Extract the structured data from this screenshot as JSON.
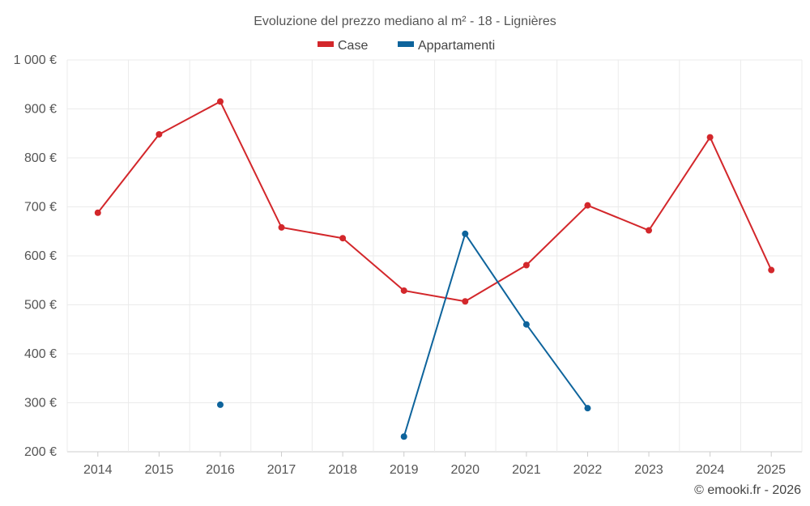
{
  "chart_data": {
    "type": "line",
    "title": "Evoluzione del prezzo mediano al m² - 18 - Lignières",
    "categories": [
      "2014",
      "2015",
      "2016",
      "2017",
      "2018",
      "2019",
      "2020",
      "2021",
      "2022",
      "2023",
      "2024",
      "2025"
    ],
    "series": [
      {
        "name": "Case",
        "color": "#d3272b",
        "values": [
          688,
          848,
          915,
          658,
          636,
          529,
          507,
          581,
          703,
          652,
          842,
          571
        ]
      },
      {
        "name": "Appartamenti",
        "color": "#0e649c",
        "values": [
          null,
          null,
          296,
          null,
          null,
          231,
          645,
          460,
          289,
          null,
          null,
          null
        ]
      }
    ],
    "ylim": [
      200,
      1000
    ],
    "yticks": [
      200,
      300,
      400,
      500,
      600,
      700,
      800,
      900,
      1000
    ],
    "ytick_labels": [
      "200 €",
      "300 €",
      "400 €",
      "500 €",
      "600 €",
      "700 €",
      "800 €",
      "900 €",
      "1 000 €"
    ],
    "xlabel": "",
    "ylabel": "",
    "grid": true,
    "legend": "top-center"
  },
  "credit": "© emooki.fr - 2026"
}
